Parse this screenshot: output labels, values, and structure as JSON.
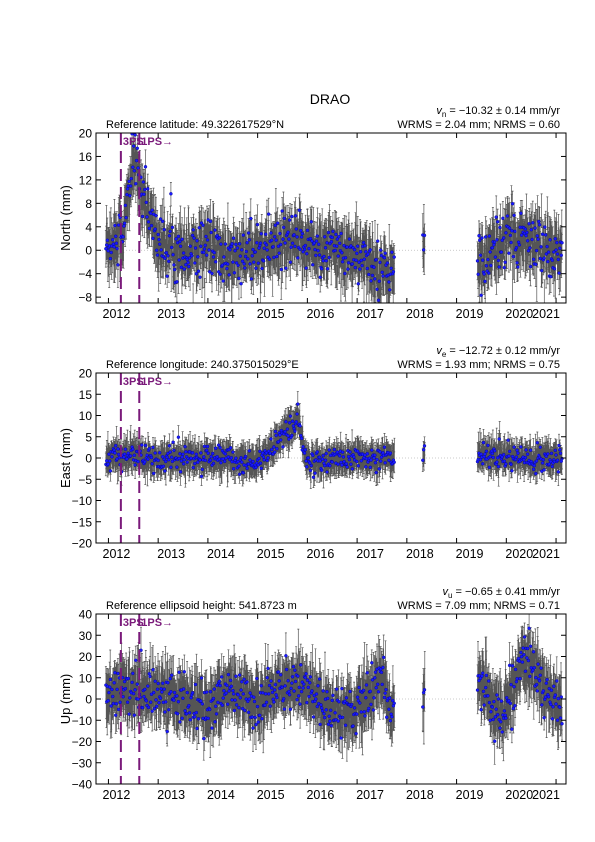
{
  "title": "DRAO",
  "x_tick_labels": [
    "2012",
    "2013",
    "2014",
    "2015",
    "2016",
    "2017",
    "2018",
    "2019",
    "2020",
    "2021"
  ],
  "colors": {
    "points": "#1a1aff",
    "error_bars": "#555555",
    "event_lines": "#7a1a7a",
    "zero_line": "#bbbbbb"
  },
  "events": [
    {
      "label": "3PS",
      "year": 2012.25
    },
    {
      "label": "1PS→",
      "year": 2012.62
    }
  ],
  "panels": [
    {
      "key": "north",
      "ylabel": "North (mm)",
      "ref_text": "Reference latitude: 49.322617529°N",
      "rate_symbol": "v",
      "rate_sub": "n",
      "rate_value": " = −10.32 ± 0.14 mm/yr",
      "stats": "WRMS = 2.04 mm; NRMS = 0.60",
      "ylim": [
        -9,
        20
      ],
      "y_ticks": [
        -8,
        -4,
        0,
        4,
        8,
        12,
        16,
        20
      ],
      "scatter": 3.0,
      "error": 2.6
    },
    {
      "key": "east",
      "ylabel": "East (mm)",
      "ref_text": "Reference longitude: 240.375015029°E",
      "rate_symbol": "v",
      "rate_sub": "e",
      "rate_value": " = −12.72 ± 0.12 mm/yr",
      "stats": "WRMS = 1.93 mm; NRMS = 0.75",
      "ylim": [
        -20,
        20
      ],
      "y_ticks": [
        -20,
        -15,
        -10,
        -5,
        0,
        5,
        10,
        15,
        20
      ],
      "scatter": 1.8,
      "error": 2.2
    },
    {
      "key": "up",
      "ylabel": "Up (mm)",
      "ref_text": "Reference ellipsoid height: 541.8723 m",
      "rate_symbol": "v",
      "rate_sub": "u",
      "rate_value": " = −0.65 ± 0.41 mm/yr",
      "stats": "WRMS = 7.09 mm; NRMS = 0.71",
      "ylim": [
        -40,
        40
      ],
      "y_ticks": [
        -40,
        -30,
        -20,
        -10,
        0,
        10,
        20,
        30,
        40
      ],
      "scatter": 7.0,
      "error": 8.0
    }
  ],
  "chart_data": {
    "type": "scatter",
    "title": "DRAO",
    "xlim": [
      2011.75,
      2021.2
    ],
    "grid": false,
    "x_ticks": [
      2012,
      2013,
      2014,
      2015,
      2016,
      2017,
      2018,
      2019,
      2020,
      2021
    ],
    "data_segments": [
      [
        2011.95,
        2017.75
      ],
      [
        2018.32,
        2018.36
      ],
      [
        2019.42,
        2021.12
      ]
    ],
    "series": [
      {
        "name": "North",
        "ylim": [
          -9,
          20
        ],
        "approx_points": [
          [
            2012.0,
            1
          ],
          [
            2012.3,
            3
          ],
          [
            2012.5,
            15
          ],
          [
            2013.0,
            1
          ],
          [
            2013.5,
            0
          ],
          [
            2014.0,
            1
          ],
          [
            2014.4,
            -2
          ],
          [
            2015.0,
            0
          ],
          [
            2015.5,
            1
          ],
          [
            2016.0,
            1
          ],
          [
            2016.5,
            0
          ],
          [
            2017.0,
            -1
          ],
          [
            2017.6,
            -4
          ],
          [
            2018.34,
            0
          ],
          [
            2019.5,
            -2
          ],
          [
            2020.0,
            2
          ],
          [
            2020.5,
            2
          ],
          [
            2021.0,
            -1
          ]
        ]
      },
      {
        "name": "East",
        "ylim": [
          -20,
          20
        ],
        "approx_points": [
          [
            2012.0,
            0
          ],
          [
            2012.5,
            1
          ],
          [
            2013.0,
            0
          ],
          [
            2014.0,
            0
          ],
          [
            2015.0,
            -1
          ],
          [
            2015.8,
            9
          ],
          [
            2016.0,
            -1
          ],
          [
            2017.0,
            0
          ],
          [
            2017.7,
            0
          ],
          [
            2018.34,
            1
          ],
          [
            2019.5,
            1
          ],
          [
            2020.0,
            0
          ],
          [
            2020.5,
            0
          ],
          [
            2021.0,
            0
          ]
        ]
      },
      {
        "name": "Up",
        "ylim": [
          -40,
          40
        ],
        "approx_points": [
          [
            2012.0,
            2
          ],
          [
            2012.5,
            5
          ],
          [
            2013.0,
            3
          ],
          [
            2013.5,
            0
          ],
          [
            2014.0,
            -5
          ],
          [
            2014.5,
            5
          ],
          [
            2015.0,
            -3
          ],
          [
            2015.5,
            8
          ],
          [
            2016.0,
            5
          ],
          [
            2016.5,
            -5
          ],
          [
            2017.0,
            -5
          ],
          [
            2017.5,
            10
          ],
          [
            2017.7,
            -8
          ],
          [
            2018.34,
            3
          ],
          [
            2019.5,
            8
          ],
          [
            2019.9,
            -10
          ],
          [
            2020.4,
            20
          ],
          [
            2020.9,
            0
          ],
          [
            2021.1,
            -5
          ]
        ]
      }
    ]
  }
}
